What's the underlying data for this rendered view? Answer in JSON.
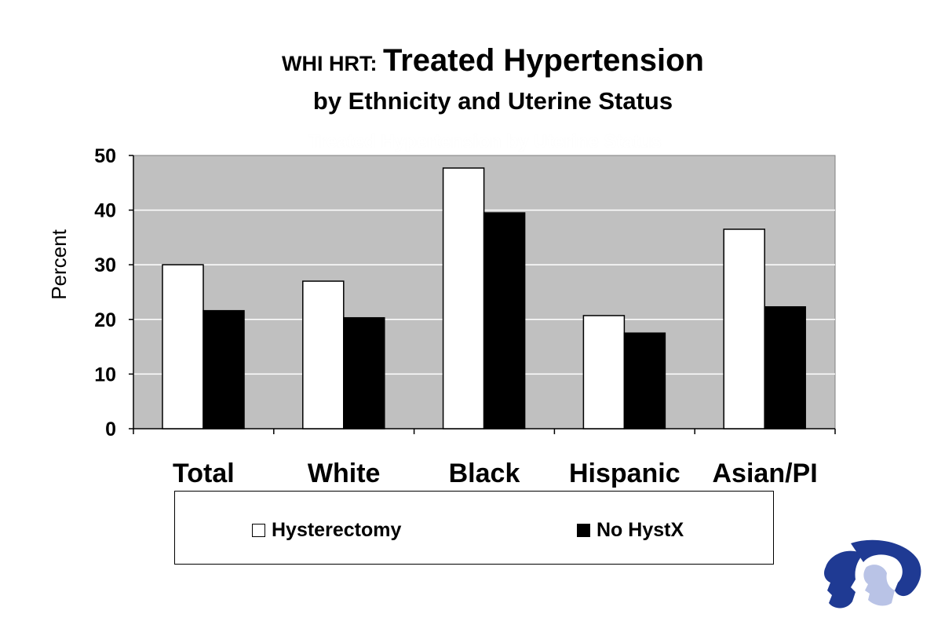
{
  "title": {
    "prefix": "WHI HRT: ",
    "main": "Treated Hypertension",
    "line2": "by Ethnicity and Uterine Status",
    "ghost": "Treated Hypertension by Uterine Status"
  },
  "chart_data": {
    "type": "bar",
    "categories": [
      "Total",
      "White",
      "Black",
      "Hispanic",
      "Asian/PI"
    ],
    "series": [
      {
        "name": "Hysterectomy",
        "values": [
          30.0,
          27.0,
          47.7,
          20.7,
          36.5
        ],
        "color": "#ffffff"
      },
      {
        "name": "No HystX",
        "values": [
          21.6,
          20.3,
          39.5,
          17.5,
          22.3
        ],
        "color": "#000000"
      }
    ],
    "ylabel": "Percent",
    "xlabel": "",
    "ylim": [
      0,
      50
    ],
    "yticks": [
      0,
      10,
      20,
      30,
      40,
      50
    ],
    "grid": true,
    "plot_background": "#c0c0c0",
    "legend_position": "bottom"
  },
  "logo": {
    "name": "whi-logo-faces",
    "color": "#1f3a93"
  }
}
